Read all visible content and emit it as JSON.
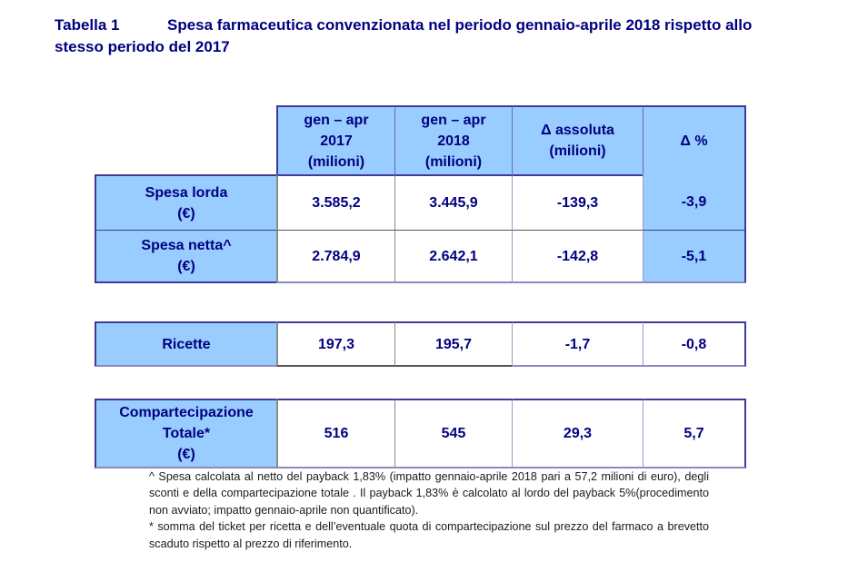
{
  "title": {
    "label": "Tabella 1",
    "text_line1": "Spesa farmaceutica convenzionata nel periodo gennaio-aprile 2018 rispetto allo",
    "text_line2": "stesso periodo del 2017"
  },
  "table": {
    "headers": [
      {
        "line1": "gen – apr",
        "line2": "2017",
        "line3": "(milioni)"
      },
      {
        "line1": "gen – apr",
        "line2": "2018",
        "line3": "(milioni)"
      },
      {
        "line1": "Δ assoluta",
        "line2": "(milioni)"
      },
      {
        "line1": "Δ %"
      }
    ],
    "rows": [
      {
        "label_line1": "Spesa lorda",
        "label_line2": "(€)",
        "v2017": "3.585,2",
        "v2018": "3.445,9",
        "delta_abs": "-139,3",
        "delta_pct": "-3,9"
      },
      {
        "label_line1": "Spesa netta^",
        "label_line2": "(€)",
        "v2017": "2.784,9",
        "v2018": "2.642,1",
        "delta_abs": "-142,8",
        "delta_pct": "-5,1"
      },
      {
        "label_line1": "Ricette",
        "v2017": "197,3",
        "v2018": "195,7",
        "delta_abs": "-1,7",
        "delta_pct": "-0,8"
      },
      {
        "label_line1": "Compartecipazione",
        "label_line2": "Totale*",
        "label_line3": "(€)",
        "v2017": "516",
        "v2018": "545",
        "delta_abs": "29,3",
        "delta_pct": "5,7"
      }
    ]
  },
  "footnotes": {
    "note1": "^ Spesa calcolata al netto del payback 1,83% (impatto gennaio-aprile 2018 pari a 57,2 milioni di euro), degli sconti e della compartecipazione totale . Il payback 1,83% è calcolato al lordo del payback 5%(procedimento non avviato; impatto gennaio-aprile non quantificato).",
    "note2": "* somma del ticket per ricetta e dell’eventuale quota di compartecipazione sul prezzo del farmaco a brevetto scaduto rispetto al prezzo di riferimento."
  },
  "colors": {
    "text": "#000080",
    "header_fill": "#99ccff",
    "border": "#7f7fb8"
  }
}
